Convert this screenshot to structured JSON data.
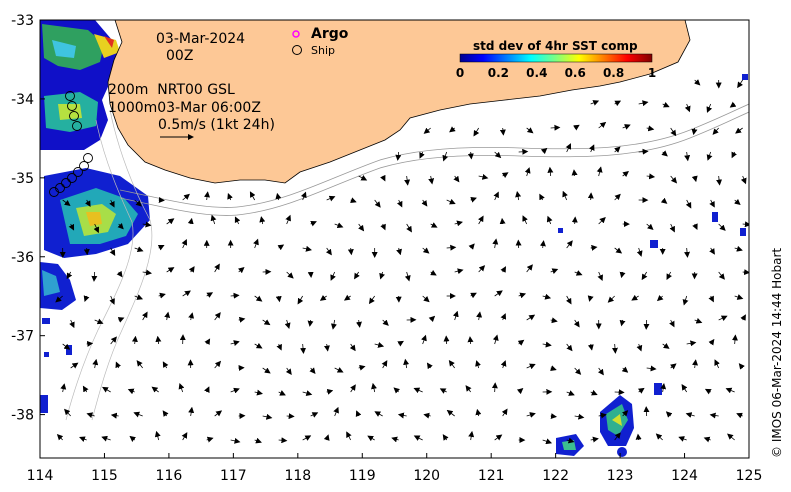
{
  "map": {
    "date": "03-Mar-2024",
    "time": "00Z",
    "depth_line1": "200m  NRT00 GSL",
    "depth_line2": "1000m03-Mar 06:00Z",
    "scale_text": "0.5m/s (1kt 24h)",
    "argo_label": "Argo",
    "ship_label": "Ship",
    "credit": "© IMOS 06-Mar-2024 14:44 Hobart",
    "colorbar": {
      "title": "std dev of 4hr SST comp",
      "ticks": [
        "0",
        "0.2",
        "0.4",
        "0.6",
        "0.8",
        "1"
      ]
    },
    "x_ticks": [
      "114",
      "115",
      "116",
      "117",
      "118",
      "119",
      "120",
      "121",
      "122",
      "123",
      "124",
      "125"
    ],
    "y_ticks": [
      "-33",
      "-34",
      "-35",
      "-36",
      "-37",
      "-38"
    ],
    "x_range": [
      114,
      125
    ],
    "y_range": [
      -38.55,
      -33
    ],
    "colors": {
      "land": "#fdc896",
      "ocean": "#ffffff",
      "argo": "#ff00ff"
    }
  }
}
